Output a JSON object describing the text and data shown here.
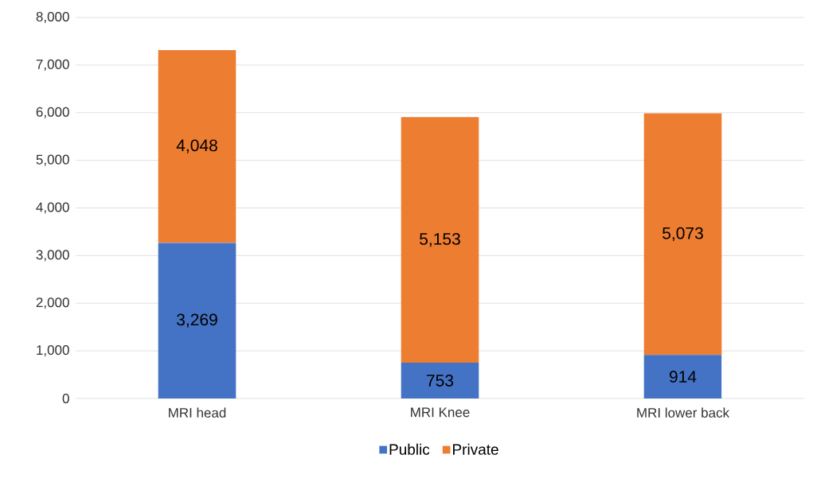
{
  "chart_data": {
    "type": "bar",
    "stacked": true,
    "categories": [
      "MRI head",
      "MRI Knee",
      "MRI lower back"
    ],
    "series": [
      {
        "name": "Public",
        "color": "#4472c4",
        "values": [
          3269,
          753,
          914
        ],
        "value_labels": [
          "3,269",
          "753",
          "914"
        ]
      },
      {
        "name": "Private",
        "color": "#ed7d31",
        "values": [
          4048,
          5153,
          5073
        ],
        "value_labels": [
          "4,048",
          "5,153",
          "5,073"
        ]
      }
    ],
    "ylim": [
      0,
      8000
    ],
    "yticks": [
      0,
      {
        "value": 1000,
        "label": "1,000"
      },
      {
        "value": 2000,
        "label": "2,000"
      },
      {
        "value": 3000,
        "label": "3,000"
      },
      {
        "value": 4000,
        "label": "4,000"
      },
      {
        "value": 5000,
        "label": "5,000"
      },
      {
        "value": 6000,
        "label": "6,000"
      },
      {
        "value": 7000,
        "label": "7,000"
      },
      {
        "value": 8000,
        "label": "8,000"
      }
    ],
    "grid": "y",
    "legend": "bottom"
  }
}
